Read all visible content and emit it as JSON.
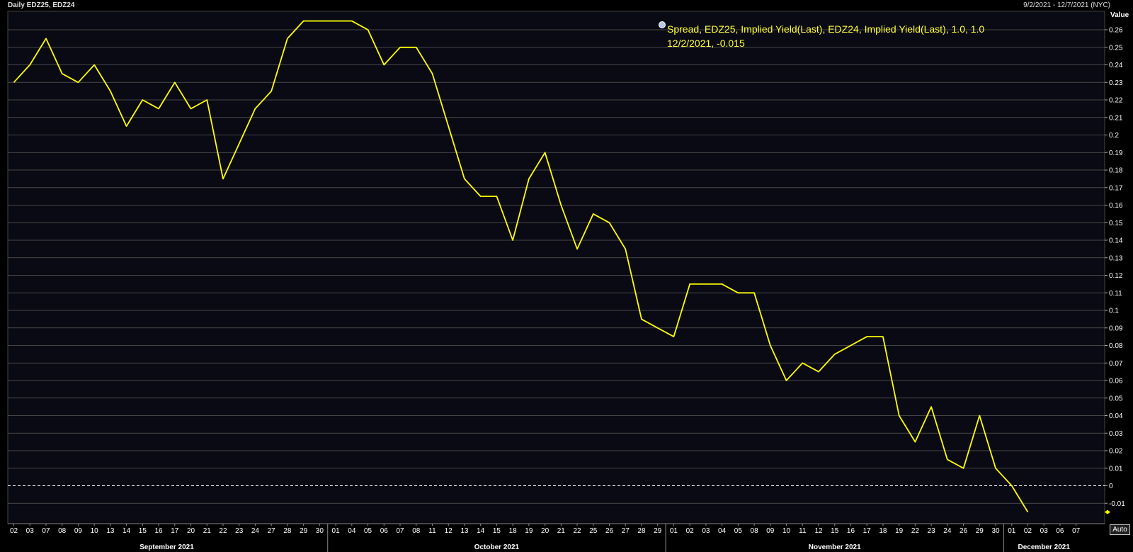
{
  "header": {
    "title": "Daily EDZ25, EDZ24",
    "range": "9/2/2021 - 12/7/2021 (NYC)",
    "auto_label": "Auto"
  },
  "colors": {
    "background": "#0a0a14",
    "line": "#ffff00",
    "grid": "#5a5a5a",
    "zero_line": "#ffffff"
  },
  "chart_data": {
    "type": "line",
    "legend": {
      "line1": "Spread, EDZ25, Implied Yield(Last), EDZ24, Implied Yield(Last),  1.0, 1.0",
      "line2": "12/2/2021, -0.015"
    },
    "ylabel": "Value",
    "ylim": [
      -0.015,
      0.27
    ],
    "y_ticks": [
      0.26,
      0.25,
      0.24,
      0.23,
      0.22,
      0.21,
      0.2,
      0.19,
      0.18,
      0.17,
      0.16,
      0.15,
      0.14,
      0.13,
      0.12,
      0.11,
      0.1,
      0.09,
      0.08,
      0.07,
      0.06,
      0.05,
      0.04,
      0.03,
      0.02,
      0.01,
      0,
      -0.01
    ],
    "y_tick_labels": [
      "0.26",
      "0.25",
      "0.24",
      "0.23",
      "0.22",
      "0.21",
      "0.2",
      "0.19",
      "0.18",
      "0.17",
      "0.16",
      "0.15",
      "0.14",
      "0.13",
      "0.12",
      "0.11",
      "0.1",
      "0.09",
      "0.08",
      "0.07",
      "0.06",
      "0.05",
      "0.04",
      "0.03",
      "0.02",
      "0.01",
      "0",
      "-0.01"
    ],
    "x_tick_labels": [
      "02",
      "03",
      "07",
      "08",
      "09",
      "10",
      "13",
      "14",
      "15",
      "16",
      "17",
      "20",
      "21",
      "22",
      "23",
      "24",
      "27",
      "28",
      "29",
      "30",
      "01",
      "04",
      "05",
      "06",
      "07",
      "08",
      "11",
      "12",
      "13",
      "14",
      "15",
      "18",
      "19",
      "20",
      "21",
      "22",
      "25",
      "26",
      "27",
      "28",
      "29",
      "01",
      "02",
      "03",
      "04",
      "05",
      "08",
      "09",
      "10",
      "11",
      "12",
      "15",
      "16",
      "17",
      "18",
      "19",
      "22",
      "23",
      "24",
      "26",
      "29",
      "30",
      "01",
      "02",
      "03",
      "06",
      "07"
    ],
    "months": [
      {
        "label": "September 2021",
        "start": 0,
        "end": 19
      },
      {
        "label": "October 2021",
        "start": 20,
        "end": 40
      },
      {
        "label": "November 2021",
        "start": 41,
        "end": 61
      },
      {
        "label": "December 2021",
        "start": 62,
        "end": 66
      }
    ],
    "series": [
      {
        "values": [
          0.23,
          0.24,
          0.255,
          0.235,
          0.23,
          0.24,
          0.225,
          0.205,
          0.22,
          0.215,
          0.23,
          0.215,
          0.22,
          0.175,
          0.195,
          0.215,
          0.225,
          0.255,
          0.265,
          0.265,
          0.265,
          0.265,
          0.26,
          0.24,
          0.25,
          0.25,
          0.235,
          0.205,
          0.175,
          0.165,
          0.165,
          0.14,
          0.175,
          0.19,
          0.16,
          0.135,
          0.155,
          0.15,
          0.135,
          0.095,
          0.09,
          0.085,
          0.115,
          0.115,
          0.115,
          0.11,
          0.11,
          0.08,
          0.06,
          0.07,
          0.065,
          0.075,
          0.08,
          0.085,
          0.085,
          0.04,
          0.025,
          0.045,
          0.015,
          0.01,
          0.04,
          0.01,
          0,
          -0.015
        ]
      }
    ],
    "grid": true
  }
}
